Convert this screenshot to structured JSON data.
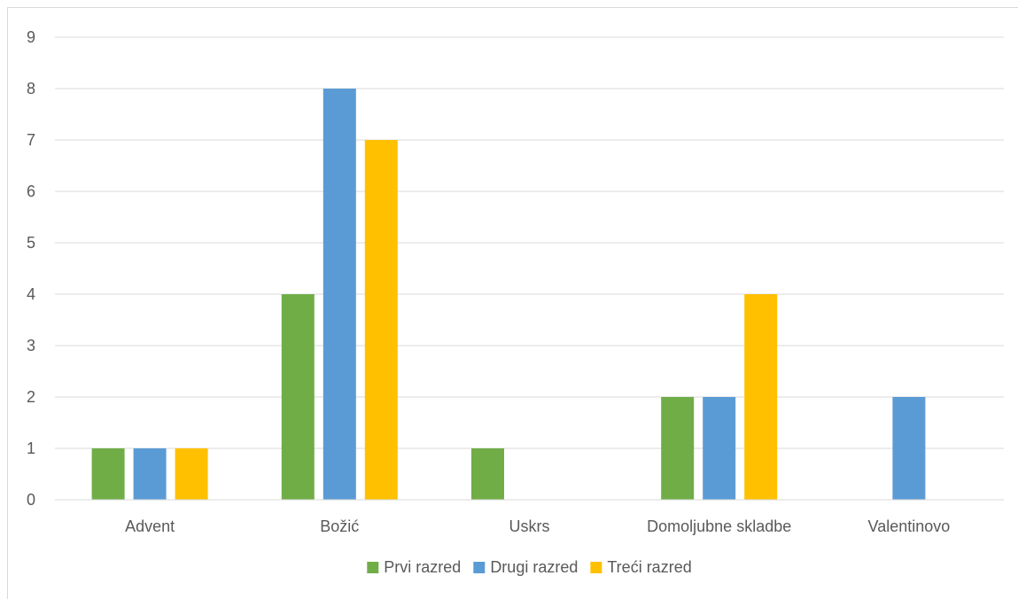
{
  "chart_data": {
    "type": "bar",
    "title": "",
    "xlabel": "",
    "ylabel": "",
    "categories": [
      "Advent",
      "Božić",
      "Uskrs",
      "Domoljubne skladbe",
      "Valentinovo"
    ],
    "series": [
      {
        "name": "Prvi razred",
        "values": [
          1,
          4,
          1,
          2,
          0
        ],
        "color": "#70ad47"
      },
      {
        "name": "Drugi razred",
        "values": [
          1,
          8,
          0,
          2,
          2
        ],
        "color": "#5b9bd5"
      },
      {
        "name": "Treći razred",
        "values": [
          1,
          7,
          0,
          4,
          0
        ],
        "color": "#ffc000"
      }
    ],
    "ylim": [
      0,
      9
    ],
    "yticks": [
      "0",
      "1",
      "2",
      "3",
      "4",
      "5",
      "6",
      "7",
      "8",
      "9"
    ],
    "grid": true,
    "legend_position": "bottom"
  }
}
